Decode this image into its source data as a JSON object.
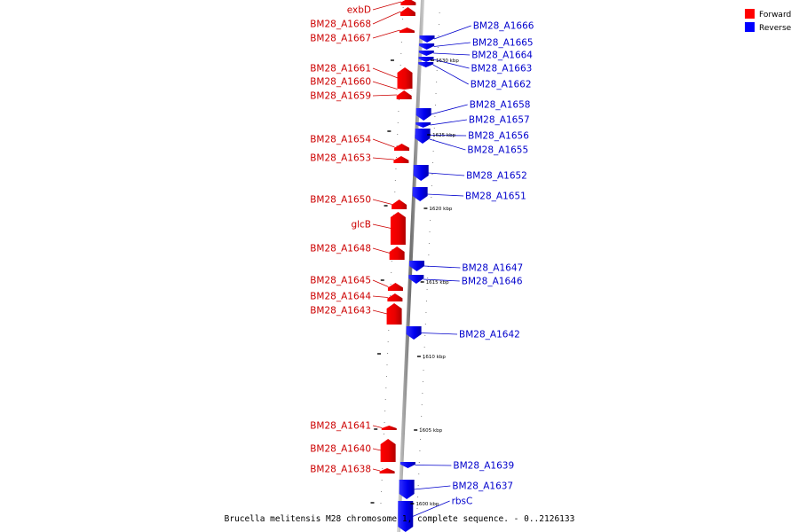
{
  "caption": "Brucella melitensis M28 chromosome 1, complete sequence. - 0..2126133",
  "colors": {
    "forward": "#ff0000",
    "reverse": "#0000ff",
    "backbone": "#8a8a8a",
    "leader": "#cc0000"
  },
  "legend": [
    {
      "label": "Forward",
      "color": "#ff0000"
    },
    {
      "label": "Reverse",
      "color": "#0000ff"
    }
  ],
  "ticks": [
    "1630 kbp",
    "1625 kbp",
    "1620 kbp",
    "1615 kbp",
    "1610 kbp",
    "1605 kbp",
    "1600 kbp"
  ],
  "forward_genes": [
    "exbD",
    "BM28_A1668",
    "BM28_A1667",
    "BM28_A1661",
    "BM28_A1660",
    "BM28_A1659",
    "BM28_A1654",
    "BM28_A1653",
    "BM28_A1650",
    "glcB",
    "BM28_A1648",
    "BM28_A1645",
    "BM28_A1644",
    "BM28_A1643",
    "BM28_A1641",
    "BM28_A1640",
    "BM28_A1638"
  ],
  "reverse_genes": [
    "BM28_A1666",
    "BM28_A1665",
    "BM28_A1664",
    "BM28_A1663",
    "BM28_A1662",
    "BM28_A1658",
    "BM28_A1657",
    "BM28_A1656",
    "BM28_A1655",
    "BM28_A1652",
    "BM28_A1651",
    "BM28_A1647",
    "BM28_A1646",
    "BM28_A1642",
    "BM28_A1639",
    "BM28_A1637",
    "rbsC"
  ]
}
